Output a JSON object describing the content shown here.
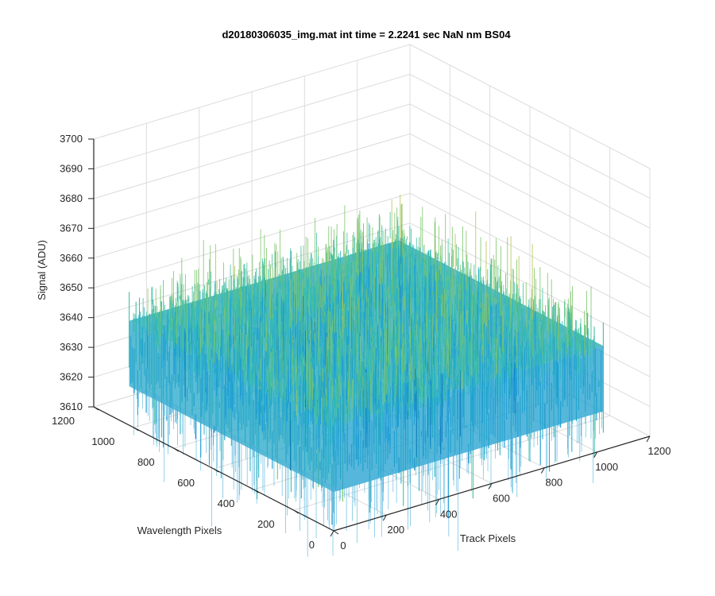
{
  "chart_data": {
    "type": "surface",
    "title": "d20180306035_img.mat int time = 2.2241 sec  NaN nm BS04",
    "xlabel": "Track Pixels",
    "ylabel": "Wavelength Pixels",
    "zlabel": "Signal (ADU)",
    "xlim": [
      0,
      1200
    ],
    "ylim": [
      0,
      1200
    ],
    "zlim": [
      3610,
      3700
    ],
    "x_ticks": [
      "0",
      "200",
      "400",
      "600",
      "800",
      "1000",
      "1200"
    ],
    "y_ticks": [
      "0",
      "200",
      "400",
      "600",
      "800",
      "1000",
      "1200"
    ],
    "z_ticks": [
      "3610",
      "3620",
      "3630",
      "3640",
      "3650",
      "3660",
      "3670",
      "3680",
      "3690",
      "3700"
    ],
    "surface": {
      "x_extent": [
        1,
        1024
      ],
      "y_extent": [
        1,
        1024
      ],
      "mean": 3645,
      "min": 3612,
      "max": 3690
    },
    "colormap": [
      "#0072bd",
      "#1a9bd6",
      "#2db3c6",
      "#42bfa0",
      "#7cc46b",
      "#b8c24e",
      "#e0b844"
    ],
    "grid": true
  }
}
